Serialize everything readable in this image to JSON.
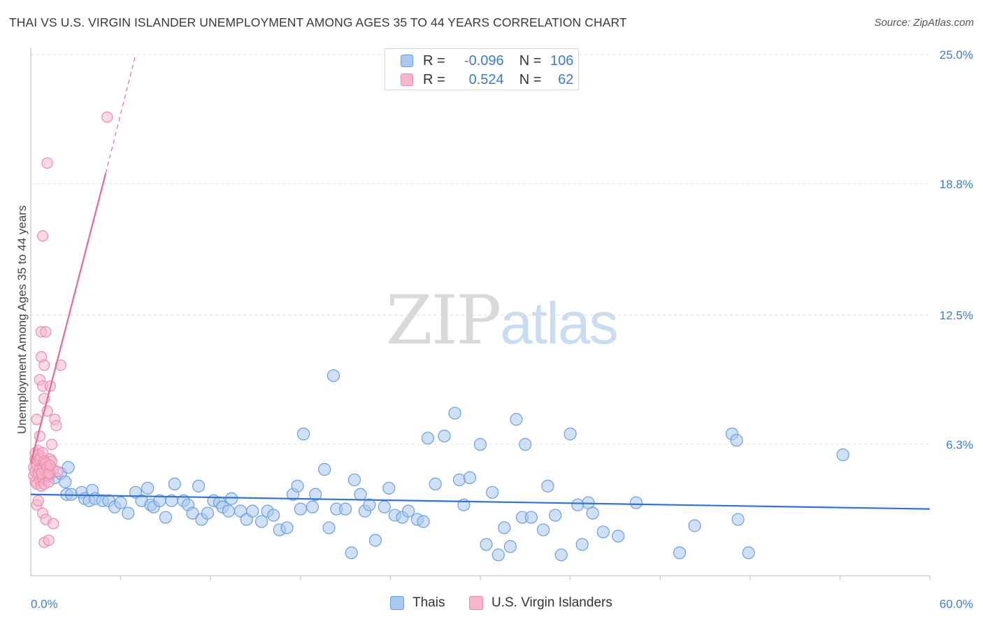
{
  "header": {
    "title": "THAI VS U.S. VIRGIN ISLANDER UNEMPLOYMENT AMONG AGES 35 TO 44 YEARS CORRELATION CHART",
    "source": "Source: ZipAtlas.com"
  },
  "watermark": {
    "zip": "ZIP",
    "atlas": "atlas"
  },
  "legend_top": [
    {
      "r_label": "R =",
      "r_value": "-0.096",
      "n_label": "N =",
      "n_value": "106"
    },
    {
      "r_label": "R =",
      "r_value": "0.524",
      "n_label": "N =",
      "n_value": "62"
    }
  ],
  "legend_bottom": [
    {
      "label": "Thais"
    },
    {
      "label": "U.S. Virgin Islanders"
    }
  ],
  "colors": {
    "thai_fill": "#a9c8f0",
    "thai_stroke": "#6a9fe0",
    "thai_line": "#2f74d0",
    "vi_fill": "#f7b6cb",
    "vi_stroke": "#ec8aac",
    "vi_line": "#e8669a",
    "tick_label": "#3d7bd0",
    "grid": "#dddddd"
  },
  "chart_data": {
    "type": "scatter",
    "title": "THAI VS U.S. VIRGIN ISLANDER UNEMPLOYMENT AMONG AGES 35 TO 44 YEARS CORRELATION CHART",
    "xlabel": "",
    "ylabel": "Unemployment Among Ages 35 to 44 years",
    "xlim": [
      0,
      60
    ],
    "ylim": [
      0,
      25
    ],
    "x_tick_labels": [
      "0.0%",
      "60.0%"
    ],
    "y_ticks": [
      6.3,
      12.5,
      18.8,
      25.0
    ],
    "y_tick_labels": [
      "6.3%",
      "12.5%",
      "18.8%",
      "25.0%"
    ],
    "grid": "horizontal dashed",
    "series": [
      {
        "name": "Thais",
        "r": -0.096,
        "n": 106,
        "trend": {
          "x": [
            0,
            60
          ],
          "y": [
            3.9,
            3.2
          ]
        },
        "points": [
          [
            0.8,
            4.6
          ],
          [
            1.2,
            4.8
          ],
          [
            1.6,
            4.7
          ],
          [
            2.0,
            4.9
          ],
          [
            2.3,
            4.5
          ],
          [
            2.4,
            3.9
          ],
          [
            2.5,
            5.2
          ],
          [
            2.7,
            3.9
          ],
          [
            3.4,
            4.0
          ],
          [
            3.6,
            3.7
          ],
          [
            3.9,
            3.6
          ],
          [
            4.1,
            4.1
          ],
          [
            4.3,
            3.7
          ],
          [
            4.8,
            3.6
          ],
          [
            5.2,
            3.6
          ],
          [
            5.6,
            3.3
          ],
          [
            6.0,
            3.5
          ],
          [
            6.5,
            3.0
          ],
          [
            7.0,
            4.0
          ],
          [
            7.4,
            3.6
          ],
          [
            7.8,
            4.2
          ],
          [
            8.0,
            3.4
          ],
          [
            8.2,
            3.3
          ],
          [
            8.6,
            3.6
          ],
          [
            9.0,
            2.8
          ],
          [
            9.4,
            3.6
          ],
          [
            9.6,
            4.4
          ],
          [
            10.2,
            3.6
          ],
          [
            10.5,
            3.4
          ],
          [
            10.8,
            3.0
          ],
          [
            11.2,
            4.3
          ],
          [
            11.4,
            2.7
          ],
          [
            11.8,
            3.0
          ],
          [
            12.2,
            3.6
          ],
          [
            12.6,
            3.5
          ],
          [
            12.8,
            3.3
          ],
          [
            13.2,
            3.1
          ],
          [
            13.4,
            3.7
          ],
          [
            14.0,
            3.1
          ],
          [
            14.4,
            2.7
          ],
          [
            14.8,
            3.1
          ],
          [
            15.4,
            2.6
          ],
          [
            15.8,
            3.1
          ],
          [
            16.2,
            2.9
          ],
          [
            16.6,
            2.2
          ],
          [
            17.1,
            2.3
          ],
          [
            17.5,
            3.9
          ],
          [
            17.8,
            4.3
          ],
          [
            18.0,
            3.2
          ],
          [
            18.2,
            6.8
          ],
          [
            18.8,
            3.3
          ],
          [
            19.0,
            3.9
          ],
          [
            19.6,
            5.1
          ],
          [
            19.9,
            2.3
          ],
          [
            20.2,
            9.6
          ],
          [
            20.4,
            3.2
          ],
          [
            21.0,
            3.2
          ],
          [
            21.4,
            1.1
          ],
          [
            21.6,
            4.6
          ],
          [
            22.0,
            3.9
          ],
          [
            22.3,
            3.1
          ],
          [
            22.6,
            3.4
          ],
          [
            23.0,
            1.7
          ],
          [
            23.6,
            3.3
          ],
          [
            23.9,
            4.2
          ],
          [
            24.3,
            2.9
          ],
          [
            24.8,
            2.8
          ],
          [
            25.2,
            3.1
          ],
          [
            25.8,
            2.7
          ],
          [
            26.2,
            2.6
          ],
          [
            26.5,
            6.6
          ],
          [
            27.0,
            4.4
          ],
          [
            27.6,
            6.7
          ],
          [
            28.3,
            7.8
          ],
          [
            28.6,
            4.6
          ],
          [
            28.9,
            3.4
          ],
          [
            29.3,
            4.7
          ],
          [
            30.0,
            6.3
          ],
          [
            30.4,
            1.5
          ],
          [
            30.8,
            4.0
          ],
          [
            31.2,
            1.0
          ],
          [
            31.6,
            2.3
          ],
          [
            32.0,
            1.4
          ],
          [
            32.4,
            7.5
          ],
          [
            32.8,
            2.8
          ],
          [
            33.0,
            6.3
          ],
          [
            33.4,
            2.8
          ],
          [
            34.2,
            2.2
          ],
          [
            34.5,
            4.3
          ],
          [
            35.0,
            2.9
          ],
          [
            35.4,
            1.0
          ],
          [
            36.0,
            6.8
          ],
          [
            36.5,
            3.4
          ],
          [
            36.8,
            1.5
          ],
          [
            37.2,
            3.5
          ],
          [
            37.5,
            3.0
          ],
          [
            38.2,
            2.1
          ],
          [
            39.2,
            1.9
          ],
          [
            40.4,
            3.5
          ],
          [
            43.3,
            1.1
          ],
          [
            44.3,
            2.4
          ],
          [
            46.8,
            6.8
          ],
          [
            47.1,
            6.5
          ],
          [
            47.2,
            2.7
          ],
          [
            47.9,
            1.1
          ],
          [
            54.2,
            5.8
          ]
        ]
      },
      {
        "name": "U.S. Virgin Islanders",
        "r": 0.524,
        "n": 62,
        "trend": {
          "x": [
            0,
            5.0
          ],
          "y": [
            5.4,
            19.3
          ]
        },
        "trend_dashed": {
          "x": [
            5.0,
            7.0
          ],
          "y": [
            19.3,
            25.0
          ]
        },
        "points": [
          [
            0.2,
            5.2
          ],
          [
            0.2,
            4.8
          ],
          [
            0.3,
            5.6
          ],
          [
            0.3,
            4.5
          ],
          [
            0.3,
            5.0
          ],
          [
            0.3,
            5.9
          ],
          [
            0.4,
            4.4
          ],
          [
            0.4,
            5.3
          ],
          [
            0.4,
            3.4
          ],
          [
            0.4,
            7.5
          ],
          [
            0.5,
            6.0
          ],
          [
            0.5,
            4.9
          ],
          [
            0.5,
            5.5
          ],
          [
            0.5,
            3.6
          ],
          [
            0.6,
            5.1
          ],
          [
            0.6,
            4.6
          ],
          [
            0.6,
            6.7
          ],
          [
            0.6,
            9.4
          ],
          [
            0.7,
            10.5
          ],
          [
            0.7,
            11.7
          ],
          [
            0.7,
            4.3
          ],
          [
            0.7,
            5.7
          ],
          [
            0.8,
            4.7
          ],
          [
            0.8,
            5.2
          ],
          [
            0.8,
            3.0
          ],
          [
            0.8,
            9.1
          ],
          [
            0.8,
            16.3
          ],
          [
            0.9,
            10.1
          ],
          [
            0.9,
            8.5
          ],
          [
            0.9,
            5.4
          ],
          [
            0.9,
            4.4
          ],
          [
            0.9,
            1.6
          ],
          [
            1.0,
            11.7
          ],
          [
            1.0,
            5.0
          ],
          [
            1.0,
            2.7
          ],
          [
            1.1,
            4.8
          ],
          [
            1.1,
            7.9
          ],
          [
            1.1,
            19.8
          ],
          [
            1.2,
            5.3
          ],
          [
            1.2,
            4.5
          ],
          [
            1.2,
            1.7
          ],
          [
            1.3,
            5.6
          ],
          [
            1.3,
            9.1
          ],
          [
            1.3,
            4.9
          ],
          [
            1.4,
            5.5
          ],
          [
            1.4,
            6.3
          ],
          [
            1.5,
            5.1
          ],
          [
            1.5,
            2.5
          ],
          [
            1.6,
            7.5
          ],
          [
            1.7,
            7.2
          ],
          [
            1.8,
            5.0
          ],
          [
            2.0,
            10.1
          ],
          [
            0.5,
            5.8
          ],
          [
            0.6,
            5.6
          ],
          [
            0.7,
            4.9
          ],
          [
            0.8,
            5.9
          ],
          [
            0.9,
            5.5
          ],
          [
            1.0,
            5.4
          ],
          [
            1.1,
            5.2
          ],
          [
            1.2,
            4.9
          ],
          [
            1.3,
            5.3
          ],
          [
            5.1,
            22.0
          ]
        ]
      }
    ]
  }
}
